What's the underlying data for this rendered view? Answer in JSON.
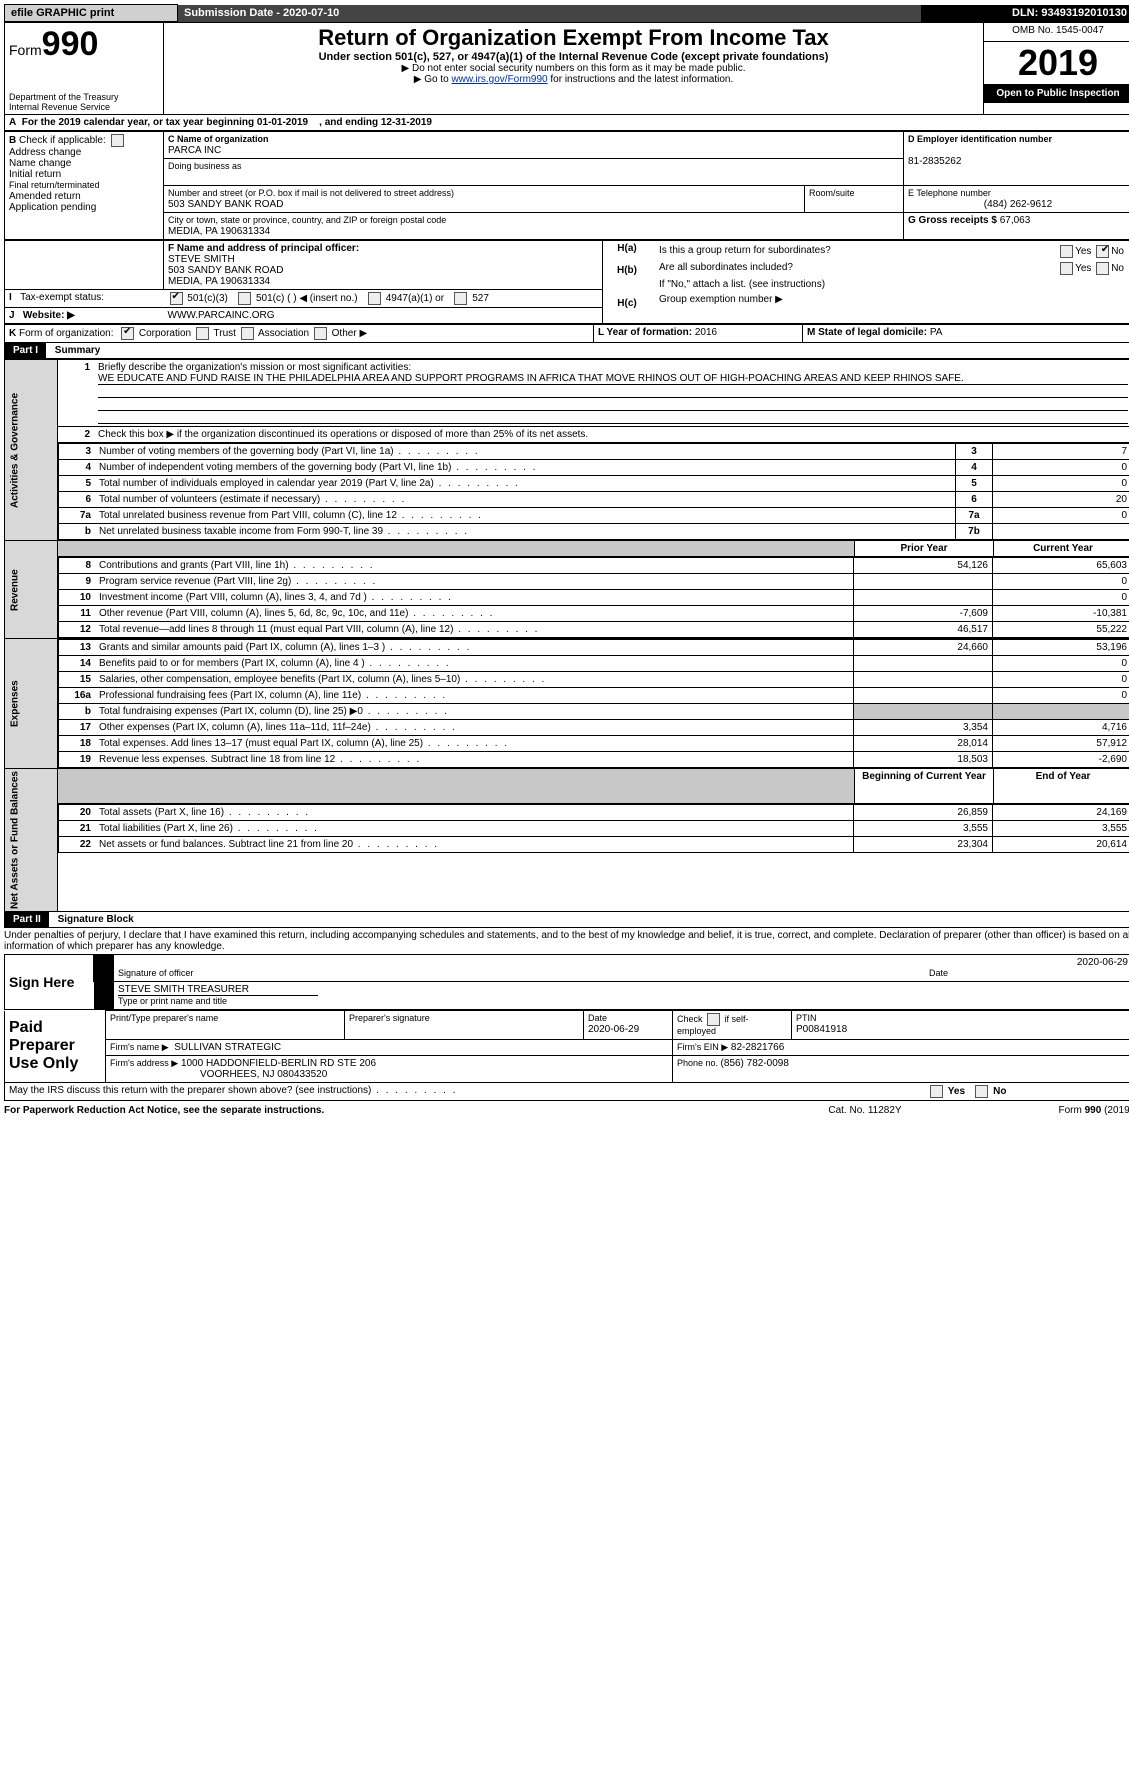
{
  "top": {
    "efile": "efile GRAPHIC print",
    "submission_label": "Submission Date - ",
    "submission_date": "2020-07-10",
    "dln_label": "DLN: ",
    "dln": "93493192010130"
  },
  "header": {
    "form_prefix": "Form",
    "form_number": "990",
    "dept1": "Department of the Treasury",
    "dept2": "Internal Revenue Service",
    "title": "Return of Organization Exempt From Income Tax",
    "sub1": "Under section 501(c), 527, or 4947(a)(1) of the Internal Revenue Code (except private foundations)",
    "sub2_prefix": "▶ Do not enter social security numbers on this form as it may be made public.",
    "sub3_prefix": "▶ Go to ",
    "sub3_link": "www.irs.gov/Form990",
    "sub3_suffix": " for instructions and the latest information.",
    "omb": "OMB No. 1545-0047",
    "year": "2019",
    "open": "Open to Public Inspection"
  },
  "A": {
    "line": "For the 2019 calendar year, or tax year beginning 01-01-2019",
    "ending": ", and ending 12-31-2019"
  },
  "B": {
    "label": "Check if applicable:",
    "opts": [
      "Address change",
      "Name change",
      "Initial return",
      "Final return/terminated",
      "Amended return",
      "Application pending"
    ]
  },
  "C": {
    "name_label": "C Name of organization",
    "name": "PARCA INC",
    "dba_label": "Doing business as",
    "street_label": "Number and street (or P.O. box if mail is not delivered to street address)",
    "street": "503 SANDY BANK ROAD",
    "room_label": "Room/suite",
    "city_label": "City or town, state or province, country, and ZIP or foreign postal code",
    "city": "MEDIA, PA  190631334"
  },
  "D": {
    "label": "D Employer identification number",
    "value": "81-2835262"
  },
  "E": {
    "label": "E Telephone number",
    "value": "(484) 262-9612"
  },
  "G": {
    "label": "G Gross receipts $ ",
    "value": "67,063"
  },
  "F": {
    "label": "F  Name and address of principal officer:",
    "name": "STEVE SMITH",
    "street": "503 SANDY BANK ROAD",
    "city": "MEDIA, PA  190631334"
  },
  "H": {
    "a": "Is this a group return for subordinates?",
    "b": "Are all subordinates included?",
    "b_note": "If \"No,\" attach a list. (see instructions)",
    "c": "Group exemption number ▶"
  },
  "I": {
    "label": "Tax-exempt status:",
    "opts": [
      "501(c)(3)",
      "501(c) (  ) ◀ (insert no.)",
      "4947(a)(1) or",
      "527"
    ]
  },
  "J": {
    "label": "Website: ▶",
    "value": "WWW.PARCAINC.ORG"
  },
  "K": {
    "label": "Form of organization:",
    "opts": [
      "Corporation",
      "Trust",
      "Association",
      "Other ▶"
    ]
  },
  "L": {
    "label": "L Year of formation: ",
    "value": "2016"
  },
  "M": {
    "label": "M State of legal domicile: ",
    "value": "PA"
  },
  "part1": {
    "label": "Part I",
    "title": "Summary",
    "side1": "Activities & Governance",
    "side2": "Revenue",
    "side3": "Expenses",
    "side4": "Net Assets or Fund Balances",
    "l1_label": "Briefly describe the organization's mission or most significant activities:",
    "l1_text": "WE EDUCATE AND FUND RAISE IN THE PHILADELPHIA AREA AND SUPPORT PROGRAMS IN AFRICA THAT MOVE RHINOS OUT OF HIGH-POACHING AREAS AND KEEP RHINOS SAFE.",
    "l2": "Check this box ▶       if the organization discontinued its operations or disposed of more than 25% of its net assets.",
    "rows_gov": [
      {
        "n": "3",
        "d": "Number of voting members of the governing body (Part VI, line 1a)",
        "k": "3",
        "v": "7"
      },
      {
        "n": "4",
        "d": "Number of independent voting members of the governing body (Part VI, line 1b)",
        "k": "4",
        "v": "0"
      },
      {
        "n": "5",
        "d": "Total number of individuals employed in calendar year 2019 (Part V, line 2a)",
        "k": "5",
        "v": "0"
      },
      {
        "n": "6",
        "d": "Total number of volunteers (estimate if necessary)",
        "k": "6",
        "v": "20"
      },
      {
        "n": "7a",
        "d": "Total unrelated business revenue from Part VIII, column (C), line 12",
        "k": "7a",
        "v": "0"
      },
      {
        "n": "b",
        "d": "Net unrelated business taxable income from Form 990-T, line 39",
        "k": "7b",
        "v": ""
      }
    ],
    "hdr_prior": "Prior Year",
    "hdr_current": "Current Year",
    "rows_rev": [
      {
        "n": "8",
        "d": "Contributions and grants (Part VIII, line 1h)",
        "p": "54,126",
        "c": "65,603"
      },
      {
        "n": "9",
        "d": "Program service revenue (Part VIII, line 2g)",
        "p": "",
        "c": "0"
      },
      {
        "n": "10",
        "d": "Investment income (Part VIII, column (A), lines 3, 4, and 7d )",
        "p": "",
        "c": "0"
      },
      {
        "n": "11",
        "d": "Other revenue (Part VIII, column (A), lines 5, 6d, 8c, 9c, 10c, and 11e)",
        "p": "-7,609",
        "c": "-10,381"
      },
      {
        "n": "12",
        "d": "Total revenue—add lines 8 through 11 (must equal Part VIII, column (A), line 12)",
        "p": "46,517",
        "c": "55,222"
      }
    ],
    "rows_exp": [
      {
        "n": "13",
        "d": "Grants and similar amounts paid (Part IX, column (A), lines 1–3 )",
        "p": "24,660",
        "c": "53,196"
      },
      {
        "n": "14",
        "d": "Benefits paid to or for members (Part IX, column (A), line 4 )",
        "p": "",
        "c": "0"
      },
      {
        "n": "15",
        "d": "Salaries, other compensation, employee benefits (Part IX, column (A), lines 5–10)",
        "p": "",
        "c": "0"
      },
      {
        "n": "16a",
        "d": "Professional fundraising fees (Part IX, column (A), line 11e)",
        "p": "",
        "c": "0"
      },
      {
        "n": "b",
        "d": "Total fundraising expenses (Part IX, column (D), line 25) ▶0",
        "p": "__shade__",
        "c": "__shade__"
      },
      {
        "n": "17",
        "d": "Other expenses (Part IX, column (A), lines 11a–11d, 11f–24e)",
        "p": "3,354",
        "c": "4,716"
      },
      {
        "n": "18",
        "d": "Total expenses. Add lines 13–17 (must equal Part IX, column (A), line 25)",
        "p": "28,014",
        "c": "57,912"
      },
      {
        "n": "19",
        "d": "Revenue less expenses. Subtract line 18 from line 12",
        "p": "18,503",
        "c": "-2,690"
      }
    ],
    "hdr_beg": "Beginning of Current Year",
    "hdr_end": "End of Year",
    "rows_net": [
      {
        "n": "20",
        "d": "Total assets (Part X, line 16)",
        "p": "26,859",
        "c": "24,169"
      },
      {
        "n": "21",
        "d": "Total liabilities (Part X, line 26)",
        "p": "3,555",
        "c": "3,555"
      },
      {
        "n": "22",
        "d": "Net assets or fund balances. Subtract line 21 from line 20",
        "p": "23,304",
        "c": "20,614"
      }
    ]
  },
  "part2": {
    "label": "Part II",
    "title": "Signature Block",
    "penalty": "Under penalties of perjury, I declare that I have examined this return, including accompanying schedules and statements, and to the best of my knowledge and belief, it is true, correct, and complete. Declaration of preparer (other than officer) is based on all information of which preparer has any knowledge.",
    "sign_here": "Sign Here",
    "sig_officer": "Signature of officer",
    "sig_date": "2020-06-29",
    "date_label": "Date",
    "officer_name": "STEVE SMITH TREASURER",
    "type_name": "Type or print name and title",
    "paid": "Paid Preparer Use Only",
    "prep_name_label": "Print/Type preparer's name",
    "prep_sig_label": "Preparer's signature",
    "prep_date_label": "Date",
    "prep_date": "2020-06-29",
    "check_if": "Check       if self-employed",
    "ptin_label": "PTIN",
    "ptin": "P00841918",
    "firm_name_label": "Firm's name   ▶",
    "firm_name": "SULLIVAN STRATEGIC",
    "firm_ein_label": "Firm's EIN ▶",
    "firm_ein": "82-2821766",
    "firm_addr_label": "Firm's address ▶",
    "firm_addr1": "1000 HADDONFIELD-BERLIN RD STE 206",
    "firm_addr2": "VOORHEES, NJ  080433520",
    "phone_label": "Phone no. ",
    "phone": "(856) 782-0098",
    "may_irs": "May the IRS discuss this return with the preparer shown above? (see instructions)"
  },
  "footer": {
    "left": "For Paperwork Reduction Act Notice, see the separate instructions.",
    "mid": "Cat. No. 11282Y",
    "right": "Form 990 (2019)"
  },
  "labels": {
    "yes": "Yes",
    "no": "No"
  }
}
